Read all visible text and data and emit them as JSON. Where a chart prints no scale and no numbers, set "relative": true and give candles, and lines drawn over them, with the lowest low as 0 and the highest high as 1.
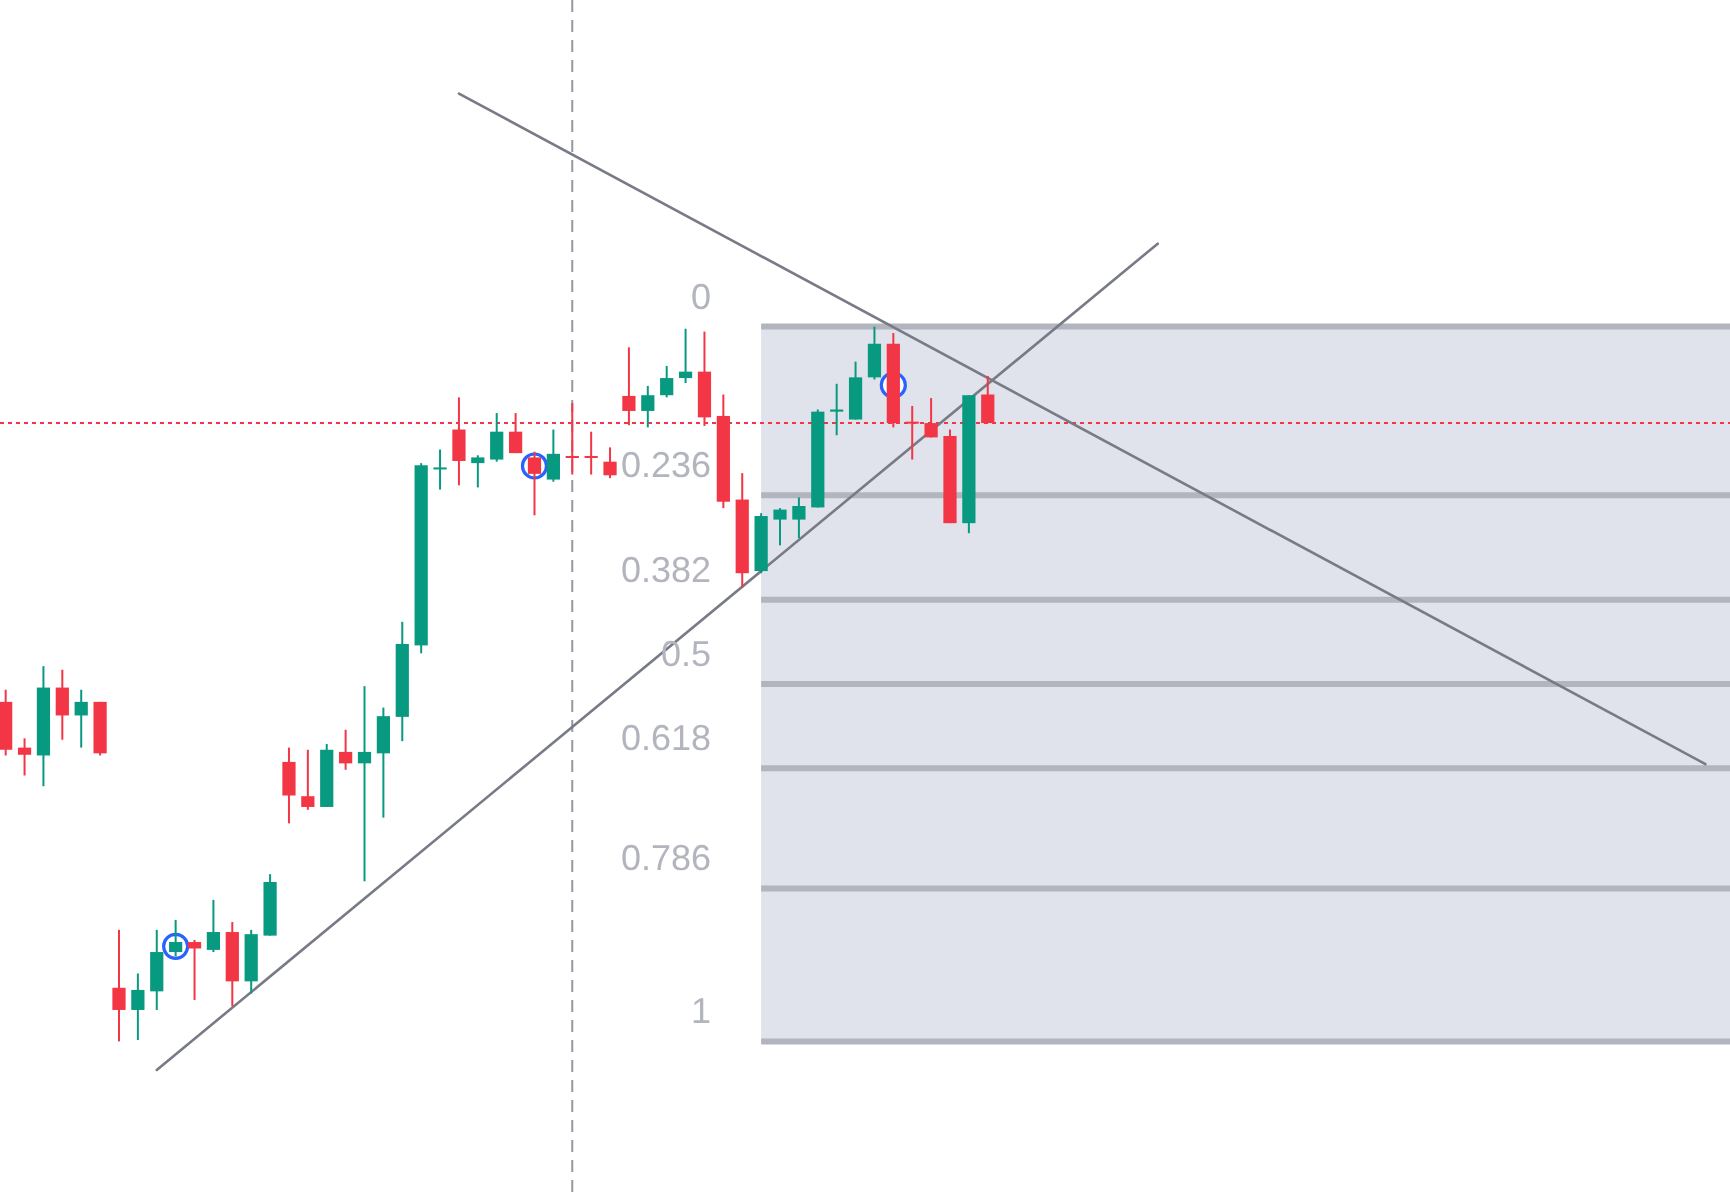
{
  "chart_data": {
    "type": "candlestick",
    "relative": true,
    "categories": [
      null,
      null,
      null,
      null,
      null,
      null,
      null,
      null,
      null,
      null,
      null,
      null,
      null,
      null,
      null,
      null,
      null,
      null,
      null,
      null,
      null,
      null,
      null,
      null,
      null,
      null,
      null,
      null,
      null,
      null,
      null,
      null,
      null,
      null,
      null,
      null,
      null,
      null,
      null,
      null,
      null,
      null,
      null,
      null,
      null,
      null,
      null,
      null,
      null,
      null,
      null,
      null,
      null,
      null,
      null,
      null,
      null,
      null,
      null,
      null,
      null,
      null,
      null,
      null,
      null,
      null,
      null,
      null,
      null,
      null,
      null,
      null,
      null,
      null,
      null,
      null,
      null,
      null,
      null,
      null,
      null,
      null,
      null,
      null,
      null,
      null,
      null,
      null,
      null,
      null,
      null,
      null
    ],
    "ohlc": [
      [
        0.475,
        0.492,
        0.4,
        0.408
      ],
      [
        0.411,
        0.424,
        0.372,
        0.401
      ],
      [
        0.4,
        0.525,
        0.357,
        0.495
      ],
      [
        0.495,
        0.52,
        0.422,
        0.456
      ],
      [
        0.456,
        0.492,
        0.411,
        0.475
      ],
      [
        0.475,
        0.475,
        0.4,
        0.403
      ],
      [
        0.075,
        0.156,
        0,
        0.044
      ],
      [
        0.044,
        0.095,
        0.002,
        0.072
      ],
      [
        0.07,
        0.156,
        0.044,
        0.125
      ],
      [
        0.125,
        0.17,
        0.119,
        0.139
      ],
      [
        0.139,
        0.142,
        0.058,
        0.13
      ],
      [
        0.128,
        0.198,
        0.125,
        0.153
      ],
      [
        0.153,
        0.167,
        0.049,
        0.084
      ],
      [
        0.084,
        0.156,
        0.067,
        0.15
      ],
      [
        0.148,
        0.234,
        0.148,
        0.223
      ],
      [
        0.391,
        0.411,
        0.305,
        0.344
      ],
      [
        0.343,
        0.408,
        0.324,
        0.328
      ],
      [
        0.328,
        0.416,
        0.328,
        0.408
      ],
      [
        0.405,
        0.436,
        0.38,
        0.389
      ],
      [
        0.389,
        0.497,
        0.224,
        0.405
      ],
      [
        0.403,
        0.467,
        0.313,
        0.455
      ],
      [
        0.454,
        0.587,
        0.42,
        0.556
      ],
      [
        0.554,
        0.809,
        0.543,
        0.806
      ],
      [
        0.801,
        0.828,
        0.772,
        0.803
      ],
      [
        0.856,
        0.901,
        0.778,
        0.812
      ],
      [
        0.809,
        0.82,
        0.775,
        0.817
      ],
      [
        0.814,
        0.879,
        0.811,
        0.853
      ],
      [
        0.853,
        0.879,
        0.823,
        0.823
      ],
      [
        0.817,
        0.825,
        0.736,
        0.794
      ],
      [
        0.786,
        0.856,
        0.783,
        0.822
      ],
      [
        0.819,
        0.893,
        0.793,
        0.817
      ],
      [
        0.819,
        0.853,
        0.793,
        0.817
      ],
      [
        0.811,
        0.831,
        0.788,
        0.792
      ],
      [
        0.903,
        0.971,
        0.862,
        0.882
      ],
      [
        0.882,
        0.917,
        0.859,
        0.904
      ],
      [
        0.904,
        0.945,
        0.901,
        0.928
      ],
      [
        0.928,
        0.997,
        0.921,
        0.937
      ],
      [
        0.937,
        0.993,
        0.861,
        0.873
      ],
      [
        0.875,
        0.905,
        0.746,
        0.755
      ],
      [
        0.758,
        0.795,
        0.635,
        0.655
      ],
      [
        0.658,
        0.739,
        0.655,
        0.735
      ],
      [
        0.73,
        0.746,
        0.694,
        0.744
      ],
      [
        0.73,
        0.761,
        0.704,
        0.749
      ],
      [
        0.747,
        0.884,
        0.747,
        0.881
      ],
      [
        0.881,
        0.92,
        0.848,
        0.884
      ],
      [
        0.87,
        0.951,
        0.87,
        0.929
      ],
      [
        0.929,
        1,
        0.926,
        0.976
      ],
      [
        0.976,
        0.991,
        0.859,
        0.865
      ],
      [
        0.867,
        0.889,
        0.814,
        0.865
      ],
      [
        0.865,
        0.9,
        0.845,
        0.845
      ],
      [
        0.847,
        0.856,
        0.725,
        0.725
      ],
      [
        0.725,
        0.904,
        0.711,
        0.904
      ],
      [
        0.905,
        0.931,
        0.865,
        0.865
      ],
      null,
      null,
      null,
      null,
      null,
      null,
      null,
      null,
      null,
      null,
      null,
      null,
      null,
      null,
      null,
      null,
      null,
      null,
      null,
      null,
      null,
      null,
      null,
      null,
      null,
      null,
      null,
      null,
      null,
      null,
      null,
      null,
      null,
      null,
      null,
      null,
      null,
      null,
      null
    ],
    "colors": [
      "#f23645",
      "#f23645",
      "#089981",
      "#f23645",
      "#089981",
      "#f23645",
      "#f23645",
      "#089981",
      "#089981",
      "#089981",
      "#f23645",
      "#089981",
      "#f23645",
      "#089981",
      "#089981",
      "#f23645",
      "#f23645",
      "#089981",
      "#f23645",
      "#089981",
      "#089981",
      "#089981",
      "#089981",
      "#089981",
      "#f23645",
      "#089981",
      "#089981",
      "#f23645",
      "#f23645",
      "#089981",
      "#f23645",
      "#f23645",
      "#f23645",
      "#f23645",
      "#089981",
      "#089981",
      "#089981",
      "#f23645",
      "#f23645",
      "#f23645",
      "#089981",
      "#089981",
      "#089981",
      "#089981",
      "#089981",
      "#089981",
      "#089981",
      "#f23645",
      "#f23645",
      "#f23645",
      "#f23645",
      "#089981",
      "#f23645",
      null,
      null,
      null,
      null,
      null,
      null,
      null,
      null,
      null,
      null,
      null,
      null,
      null,
      null,
      null,
      null,
      null,
      null,
      null,
      null,
      null,
      null,
      null,
      null,
      null,
      null,
      null,
      null,
      null,
      null,
      null,
      null,
      null,
      null,
      null,
      null,
      null,
      null,
      null
    ],
    "series": [
      {
        "type": "line",
        "color": "#787b86",
        "values": [
          null,
          null,
          null,
          null,
          null,
          null,
          null,
          null,
          null,
          null,
          null,
          null,
          null,
          null,
          null,
          null,
          null,
          null,
          null,
          null,
          null,
          null,
          null,
          null,
          1.326,
          null,
          null,
          null,
          null,
          null,
          null,
          null,
          null,
          null,
          null,
          null,
          null,
          null,
          null,
          null,
          null,
          null,
          null,
          null,
          null,
          null,
          null,
          null,
          null,
          null,
          null,
          null,
          null,
          null,
          null,
          null,
          null,
          null,
          null,
          null,
          null,
          null,
          null,
          null,
          null,
          null,
          null,
          null,
          null,
          null,
          null,
          null,
          null,
          null,
          null,
          null,
          null,
          null,
          null,
          null,
          null,
          null,
          null,
          null,
          null,
          null,
          null,
          null,
          null,
          null,
          0.388,
          null
        ]
      },
      {
        "type": "line",
        "color": "#787b86",
        "values": [
          null,
          null,
          null,
          null,
          null,
          null,
          null,
          null,
          -0.04,
          null,
          null,
          null,
          null,
          null,
          null,
          null,
          null,
          null,
          null,
          null,
          null,
          null,
          null,
          null,
          null,
          null,
          null,
          null,
          null,
          null,
          null,
          null,
          null,
          null,
          null,
          null,
          null,
          null,
          null,
          null,
          null,
          null,
          null,
          null,
          null,
          null,
          null,
          null,
          null,
          null,
          null,
          null,
          null,
          null,
          null,
          null,
          null,
          null,
          null,
          null,
          null,
          1.116,
          null,
          null,
          null,
          null,
          null,
          null,
          null,
          null,
          null,
          null,
          null,
          null,
          null,
          null,
          null,
          null,
          null,
          null,
          null,
          null,
          null,
          null,
          null,
          null,
          null,
          null,
          null,
          null,
          null,
          null
        ]
      },
      {
        "type": "scatter",
        "color": "#2962ff",
        "marker": "circle",
        "values": [
          null,
          null,
          null,
          null,
          null,
          null,
          null,
          null,
          null,
          0.133,
          null,
          null,
          null,
          null,
          null,
          null,
          null,
          null,
          null,
          null,
          null,
          null,
          null,
          null,
          null,
          null,
          null,
          null,
          0.805,
          null,
          null,
          null,
          null,
          null,
          null,
          null,
          null,
          null,
          null,
          null,
          null,
          null,
          null,
          null,
          null,
          null,
          null,
          0.918,
          null,
          null,
          null,
          null,
          null,
          null,
          null,
          null,
          null,
          null,
          null,
          null,
          null,
          null,
          null,
          null,
          null,
          null,
          null,
          null,
          null,
          null,
          null,
          null,
          null,
          null,
          null,
          null,
          null,
          null,
          null,
          null,
          null,
          null,
          null,
          null,
          null,
          null,
          null,
          null,
          null,
          null,
          null,
          null
        ]
      }
    ],
    "bands": [
      {
        "axis": "y",
        "from": 0,
        "to": 1,
        "color": "#e0e3eb"
      }
    ],
    "ref_lines": [
      {
        "axis": "y",
        "value": 1,
        "color": "#b2b5be",
        "line_style": "solid"
      },
      {
        "axis": "y",
        "value": 0.764,
        "color": "#b2b5be",
        "line_style": "solid"
      },
      {
        "axis": "y",
        "value": 0.618,
        "color": "#b2b5be",
        "line_style": "solid"
      },
      {
        "axis": "y",
        "value": 0.5,
        "color": "#b2b5be",
        "line_style": "solid"
      },
      {
        "axis": "y",
        "value": 0.382,
        "color": "#b2b5be",
        "line_style": "solid"
      },
      {
        "axis": "y",
        "value": 0.214,
        "color": "#b2b5be",
        "line_style": "solid"
      },
      {
        "axis": "y",
        "value": 0,
        "color": "#b2b5be",
        "line_style": "solid"
      },
      {
        "axis": "y",
        "value": 0.865,
        "color": "#f23645",
        "line_style": "dotted"
      }
    ],
    "annotations": [
      "0",
      "0.236",
      "0.382",
      "0.5",
      "0.618",
      "0.786",
      "1"
    ]
  }
}
